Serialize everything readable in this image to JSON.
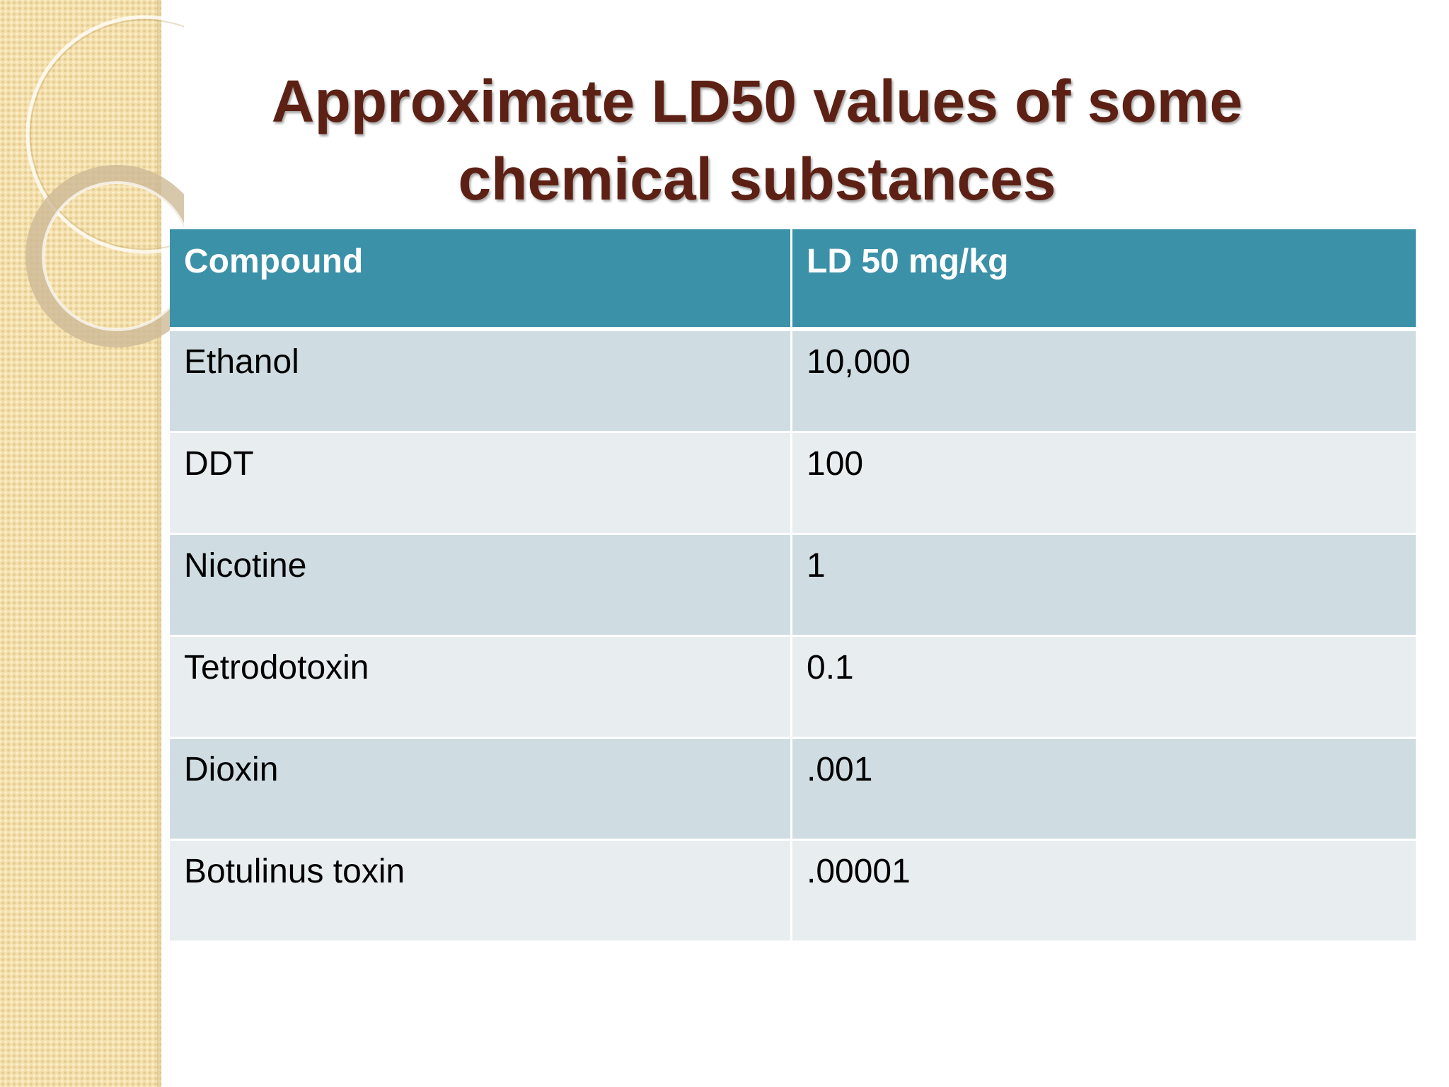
{
  "slide": {
    "title_line1": "Approximate LD50 values of some",
    "title_line2": "chemical substances"
  },
  "table": {
    "headers": [
      "Compound",
      "LD 50 mg/kg"
    ],
    "rows": [
      [
        "Ethanol",
        "10,000"
      ],
      [
        "DDT",
        "100"
      ],
      [
        "Nicotine",
        "1"
      ],
      [
        "Tetrodotoxin",
        "0.1"
      ],
      [
        "Dioxin",
        ".001"
      ],
      [
        "Botulinus toxin",
        ".00001"
      ]
    ]
  },
  "colors": {
    "title": "#5c2114",
    "header_bg": "#3b91a8",
    "row_odd_bg": "#cfdde2",
    "row_even_bg": "#e8edef",
    "side_band": "#f4e0ad"
  }
}
